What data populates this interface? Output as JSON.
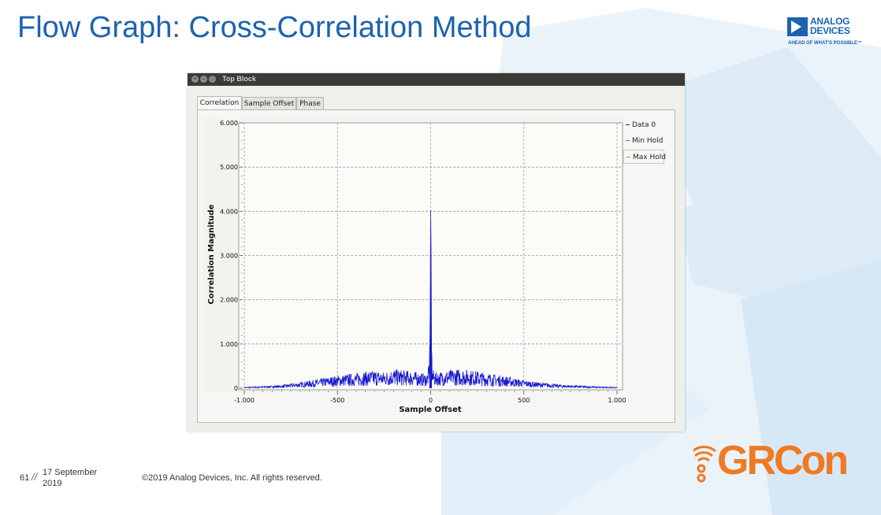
{
  "slide": {
    "title": "Flow Graph: Cross-Correlation Method",
    "page_number": "61",
    "date_line1": "17 September",
    "date_line2": "2019",
    "copyright": "©2019 Analog Devices, Inc. All rights reserved."
  },
  "logo": {
    "line1": "ANALOG",
    "line2": "DEVICES",
    "tagline": "AHEAD OF WHAT'S POSSIBLE™"
  },
  "event_logo": "GRCon",
  "window": {
    "title": "Top Block",
    "tabs": [
      {
        "label": "Correlation",
        "active": true
      },
      {
        "label": "Sample Offset",
        "active": false
      },
      {
        "label": "Phase",
        "active": false
      }
    ]
  },
  "colors": {
    "title_blue": "#1b63b0",
    "trace": "#1a1ad2",
    "grcon_orange": "#f07a22"
  },
  "chart_data": {
    "type": "line",
    "xlabel": "Sample Offset",
    "ylabel": "Correlation Magnitude",
    "xlim": [
      -1000,
      1000
    ],
    "ylim": [
      0,
      6
    ],
    "x_ticks": [
      {
        "value": -1000,
        "label": "-1.000"
      },
      {
        "value": -500,
        "label": "-500"
      },
      {
        "value": 0,
        "label": "0"
      },
      {
        "value": 500,
        "label": "500"
      },
      {
        "value": 1000,
        "label": "1.000"
      }
    ],
    "y_ticks": [
      {
        "value": 0,
        "label": "0"
      },
      {
        "value": 1,
        "label": "1.000"
      },
      {
        "value": 2,
        "label": "2.000"
      },
      {
        "value": 3,
        "label": "3.000"
      },
      {
        "value": 4,
        "label": "4.000"
      },
      {
        "value": 5,
        "label": "5.000"
      },
      {
        "value": 6,
        "label": "6.000"
      }
    ],
    "grid": true,
    "legend_position": "right",
    "series": [
      {
        "name": "Data 0",
        "color": "#1a1ad2",
        "points": [
          [
            -1000,
            0.02
          ],
          [
            -950,
            0.03
          ],
          [
            -900,
            0.04
          ],
          [
            -850,
            0.05
          ],
          [
            -800,
            0.06
          ],
          [
            -750,
            0.09
          ],
          [
            -700,
            0.12
          ],
          [
            -650,
            0.15
          ],
          [
            -600,
            0.18
          ],
          [
            -550,
            0.22
          ],
          [
            -500,
            0.25
          ],
          [
            -450,
            0.28
          ],
          [
            -400,
            0.3
          ],
          [
            -350,
            0.33
          ],
          [
            -300,
            0.35
          ],
          [
            -250,
            0.32
          ],
          [
            -200,
            0.38
          ],
          [
            -150,
            0.36
          ],
          [
            -100,
            0.34
          ],
          [
            -50,
            0.3
          ],
          [
            -20,
            0.28
          ],
          [
            -10,
            0.45
          ],
          [
            -5,
            0.9
          ],
          [
            -3,
            1.2
          ],
          [
            0,
            4.02
          ],
          [
            2,
            3.2
          ],
          [
            5,
            0.85
          ],
          [
            10,
            0.4
          ],
          [
            20,
            0.32
          ],
          [
            50,
            0.33
          ],
          [
            100,
            0.36
          ],
          [
            150,
            0.38
          ],
          [
            200,
            0.37
          ],
          [
            250,
            0.34
          ],
          [
            300,
            0.3
          ],
          [
            350,
            0.27
          ],
          [
            400,
            0.24
          ],
          [
            450,
            0.2
          ],
          [
            500,
            0.16
          ],
          [
            550,
            0.13
          ],
          [
            600,
            0.11
          ],
          [
            650,
            0.09
          ],
          [
            700,
            0.07
          ],
          [
            750,
            0.06
          ],
          [
            800,
            0.05
          ],
          [
            850,
            0.04
          ],
          [
            900,
            0.03
          ],
          [
            950,
            0.03
          ],
          [
            1000,
            0.02
          ]
        ]
      },
      {
        "name": "Min Hold",
        "color": "#d0488f",
        "points": []
      },
      {
        "name": "Max Hold",
        "color": "#7a9a5a",
        "points": []
      }
    ]
  }
}
